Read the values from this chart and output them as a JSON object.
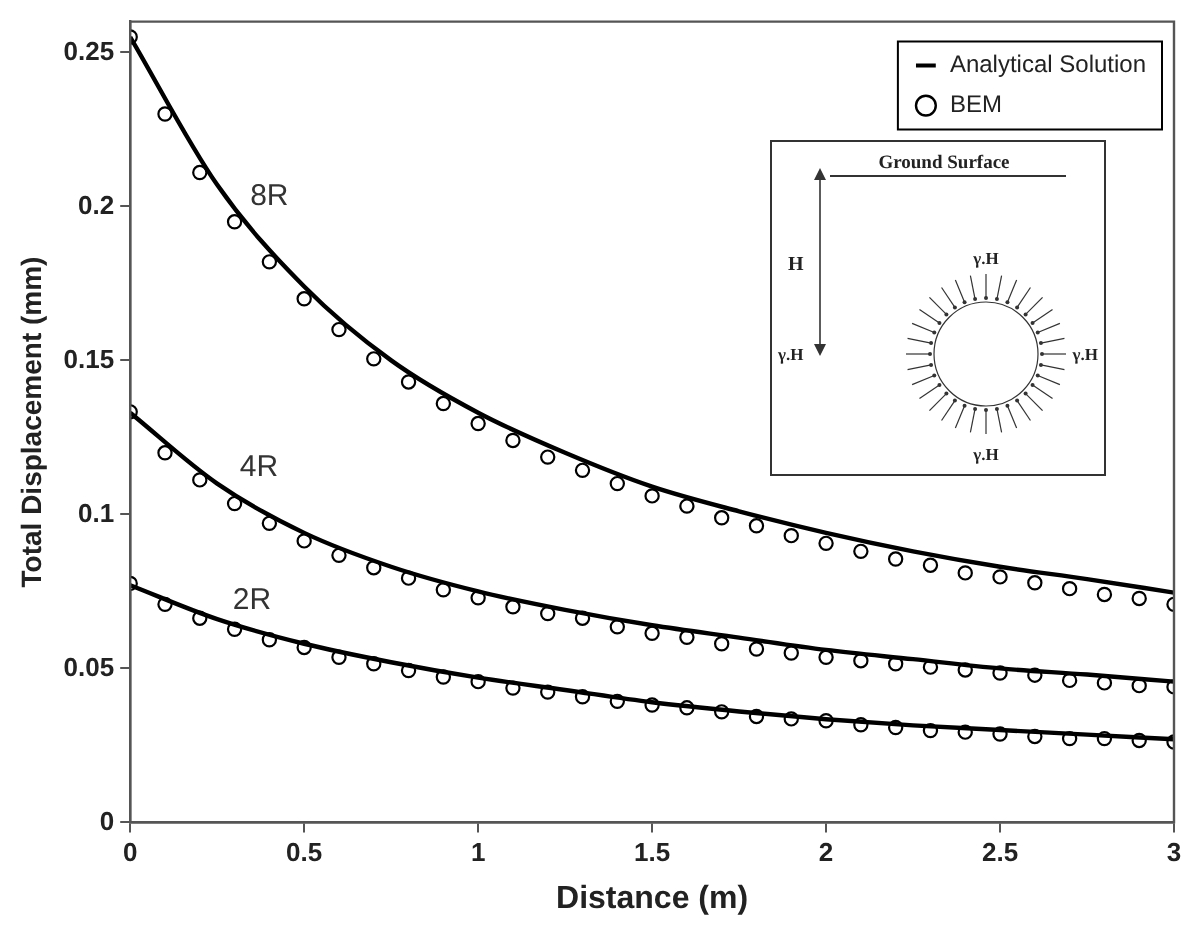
{
  "chart_data": {
    "type": "line",
    "xlabel": "Distance (m)",
    "ylabel": "Total Displacement (mm)",
    "xlim": [
      0,
      3
    ],
    "xticks": [
      0,
      0.5,
      1,
      1.5,
      2,
      2.5,
      3
    ],
    "ylim": [
      0,
      0.26
    ],
    "yticks": [
      0,
      0.05,
      0.1,
      0.15,
      0.2,
      0.25
    ],
    "grid": false,
    "legend": "top right",
    "series": [
      {
        "name": "Analytical Solution",
        "type": "line",
        "marker": "none",
        "line_style": "solid",
        "color": "#000000",
        "x": [
          0,
          0.25,
          0.5,
          0.75,
          1,
          1.25,
          1.5,
          1.75,
          2,
          2.25,
          2.5,
          2.75,
          3
        ],
        "values": [
          0.255,
          0.207,
          0.174,
          0.15,
          0.133,
          0.12,
          0.109,
          0.101,
          0.094,
          0.088,
          0.083,
          0.079,
          0.0746
        ]
      },
      {
        "name": "BEM",
        "type": "scatter",
        "marker": "circle",
        "color": "#000000",
        "x": [
          0,
          0.1,
          0.2,
          0.3,
          0.4,
          0.5,
          0.6,
          0.7,
          0.8,
          0.9,
          1,
          1.1,
          1.2,
          1.3,
          1.4,
          1.5,
          1.6,
          1.7,
          1.8,
          1.9,
          2,
          2.1,
          2.2,
          2.3,
          2.4,
          2.5,
          2.6,
          2.7,
          2.8,
          2.9,
          3
        ],
        "values": [
          0.255,
          0.23,
          0.211,
          0.195,
          0.182,
          0.17,
          0.16,
          0.1505,
          0.143,
          0.136,
          0.1295,
          0.124,
          0.1186,
          0.1143,
          0.11,
          0.106,
          0.1027,
          0.0989,
          0.0963,
          0.0931,
          0.0906,
          0.088,
          0.0855,
          0.0835,
          0.081,
          0.0797,
          0.0778,
          0.0759,
          0.074,
          0.0727,
          0.0708
        ]
      },
      {
        "type": "line",
        "marker": "none",
        "line_style": "solid",
        "color": "#000000",
        "x": [
          0,
          0.25,
          0.5,
          0.75,
          1,
          1.25,
          1.5,
          1.75,
          2,
          2.25,
          2.5,
          2.75,
          3
        ],
        "values": [
          0.133,
          0.11,
          0.094,
          0.083,
          0.075,
          0.069,
          0.064,
          0.06,
          0.056,
          0.053,
          0.05,
          0.048,
          0.0457
        ]
      },
      {
        "type": "scatter",
        "marker": "circle",
        "color": "#000000",
        "x": [
          0,
          0.1,
          0.2,
          0.3,
          0.4,
          0.5,
          0.6,
          0.7,
          0.8,
          0.9,
          1,
          1.1,
          1.2,
          1.3,
          1.4,
          1.5,
          1.6,
          1.7,
          1.8,
          1.9,
          2,
          2.1,
          2.2,
          2.3,
          2.4,
          2.5,
          2.6,
          2.7,
          2.8,
          2.9,
          3
        ],
        "values": [
          0.1333,
          0.12,
          0.1112,
          0.1035,
          0.0971,
          0.0914,
          0.0867,
          0.0827,
          0.0793,
          0.0755,
          0.0729,
          0.07,
          0.0678,
          0.0663,
          0.0635,
          0.0614,
          0.0601,
          0.058,
          0.0563,
          0.055,
          0.0536,
          0.0525,
          0.0515,
          0.0504,
          0.0495,
          0.0485,
          0.0478,
          0.0461,
          0.0453,
          0.0444,
          0.044
        ]
      },
      {
        "type": "line",
        "marker": "none",
        "line_style": "solid",
        "color": "#000000",
        "x": [
          0,
          0.25,
          0.5,
          0.75,
          1,
          1.25,
          1.5,
          1.75,
          2,
          2.25,
          2.5,
          2.75,
          3
        ],
        "values": [
          0.077,
          0.066,
          0.058,
          0.052,
          0.047,
          0.043,
          0.039,
          0.036,
          0.0335,
          0.0315,
          0.03,
          0.0285,
          0.027
        ]
      },
      {
        "type": "scatter",
        "marker": "circle",
        "color": "#000000",
        "x": [
          0,
          0.1,
          0.2,
          0.3,
          0.4,
          0.5,
          0.6,
          0.7,
          0.8,
          0.9,
          1,
          1.1,
          1.2,
          1.3,
          1.4,
          1.5,
          1.6,
          1.7,
          1.8,
          1.9,
          2,
          2.1,
          2.2,
          2.3,
          2.4,
          2.5,
          2.6,
          2.7,
          2.8,
          2.9,
          3
        ],
        "values": [
          0.0776,
          0.0708,
          0.0663,
          0.0627,
          0.0593,
          0.0568,
          0.0536,
          0.0515,
          0.0493,
          0.0472,
          0.0457,
          0.0436,
          0.0423,
          0.0408,
          0.0393,
          0.0381,
          0.0372,
          0.0359,
          0.0344,
          0.0336,
          0.033,
          0.0317,
          0.0308,
          0.0298,
          0.0293,
          0.0287,
          0.0279,
          0.0272,
          0.0272,
          0.0266,
          0.0261
        ]
      }
    ],
    "annotations": [
      "8R",
      "4R",
      "2R",
      "Ground Surface",
      "H",
      "γ.H",
      "γ.H",
      "γ.H",
      "γ.H"
    ]
  }
}
